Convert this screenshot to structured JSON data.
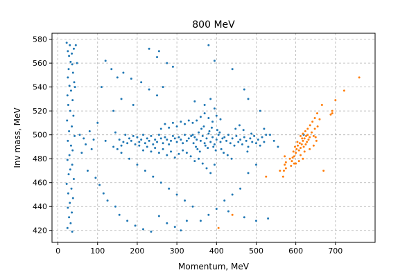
{
  "chart_data": {
    "type": "scatter",
    "title": "800 MeV",
    "xlabel": "Momentum, MeV",
    "ylabel": "Inv mass, MeV",
    "xlim": [
      -15,
      800
    ],
    "ylim": [
      410,
      585
    ],
    "xticks": [
      0,
      100,
      200,
      300,
      400,
      500,
      600,
      700
    ],
    "yticks": [
      420,
      440,
      460,
      480,
      500,
      520,
      540,
      560,
      580
    ],
    "grid": true,
    "series": [
      {
        "color": "#1f77b4",
        "points": [
          [
            22,
            577
          ],
          [
            30,
            575
          ],
          [
            35,
            568
          ],
          [
            25,
            570
          ],
          [
            28,
            566
          ],
          [
            40,
            572
          ],
          [
            32,
            561
          ],
          [
            36,
            559
          ],
          [
            27,
            555
          ],
          [
            38,
            552
          ],
          [
            25,
            548
          ],
          [
            41,
            544
          ],
          [
            29,
            541
          ],
          [
            33,
            537
          ],
          [
            24,
            533
          ],
          [
            37,
            529
          ],
          [
            26,
            525
          ],
          [
            31,
            520
          ],
          [
            39,
            516
          ],
          [
            23,
            512
          ],
          [
            35,
            507
          ],
          [
            28,
            503
          ],
          [
            42,
            499
          ],
          [
            25,
            495
          ],
          [
            33,
            491
          ],
          [
            37,
            487
          ],
          [
            29,
            483
          ],
          [
            24,
            479
          ],
          [
            36,
            475
          ],
          [
            31,
            471
          ],
          [
            27,
            467
          ],
          [
            40,
            463
          ],
          [
            22,
            459
          ],
          [
            34,
            455
          ],
          [
            26,
            451
          ],
          [
            38,
            447
          ],
          [
            30,
            443
          ],
          [
            25,
            439
          ],
          [
            35,
            435
          ],
          [
            28,
            431
          ],
          [
            32,
            426
          ],
          [
            24,
            422
          ],
          [
            36,
            419
          ],
          [
            45,
            575
          ],
          [
            48,
            560
          ],
          [
            43,
            540
          ],
          [
            120,
            562
          ],
          [
            135,
            555
          ],
          [
            150,
            548
          ],
          [
            110,
            540
          ],
          [
            165,
            552
          ],
          [
            185,
            547
          ],
          [
            210,
            544
          ],
          [
            230,
            538
          ],
          [
            250,
            533
          ],
          [
            265,
            540
          ],
          [
            190,
            525
          ],
          [
            160,
            530
          ],
          [
            140,
            520
          ],
          [
            100,
            510
          ],
          [
            80,
            503
          ],
          [
            90,
            496
          ],
          [
            70,
            492
          ],
          [
            60,
            485
          ],
          [
            75,
            470
          ],
          [
            95,
            464
          ],
          [
            105,
            458
          ],
          [
            115,
            451
          ],
          [
            125,
            445
          ],
          [
            145,
            440
          ],
          [
            155,
            433
          ],
          [
            175,
            428
          ],
          [
            195,
            424
          ],
          [
            215,
            421
          ],
          [
            235,
            419
          ],
          [
            255,
            432
          ],
          [
            275,
            426
          ],
          [
            295,
            423
          ],
          [
            310,
            420
          ],
          [
            325,
            428
          ],
          [
            250,
            565
          ],
          [
            275,
            560
          ],
          [
            290,
            557
          ],
          [
            230,
            572
          ],
          [
            255,
            570
          ],
          [
            380,
            575
          ],
          [
            395,
            562
          ],
          [
            440,
            555
          ],
          [
            470,
            538
          ],
          [
            480,
            530
          ],
          [
            510,
            520
          ],
          [
            520,
            505
          ],
          [
            535,
            500
          ],
          [
            545,
            495
          ],
          [
            555,
            490
          ],
          [
            500,
            475
          ],
          [
            480,
            468
          ],
          [
            460,
            455
          ],
          [
            440,
            450
          ],
          [
            420,
            445
          ],
          [
            400,
            438
          ],
          [
            380,
            433
          ],
          [
            360,
            428
          ],
          [
            340,
            440
          ],
          [
            320,
            445
          ],
          [
            300,
            450
          ],
          [
            280,
            455
          ],
          [
            260,
            460
          ],
          [
            240,
            465
          ],
          [
            220,
            470
          ],
          [
            200,
            475
          ],
          [
            180,
            480
          ],
          [
            160,
            485
          ],
          [
            140,
            490
          ],
          [
            120,
            495
          ],
          [
            55,
            500
          ],
          [
            65,
            497
          ],
          [
            85,
            488
          ],
          [
            530,
            430
          ],
          [
            500,
            428
          ],
          [
            470,
            431
          ],
          [
            430,
            436
          ],
          [
            620,
            500
          ],
          [
            340,
            500
          ],
          [
            345,
            498
          ],
          [
            350,
            496
          ],
          [
            355,
            502
          ],
          [
            360,
            495
          ],
          [
            365,
            499
          ],
          [
            370,
            493
          ],
          [
            375,
            497
          ],
          [
            380,
            501
          ],
          [
            385,
            494
          ],
          [
            390,
            498
          ],
          [
            395,
            492
          ],
          [
            400,
            496
          ],
          [
            405,
            500
          ],
          [
            410,
            494
          ],
          [
            348,
            490
          ],
          [
            352,
            488
          ],
          [
            358,
            486
          ],
          [
            362,
            505
          ],
          [
            368,
            507
          ],
          [
            372,
            491
          ],
          [
            378,
            489
          ],
          [
            382,
            503
          ],
          [
            388,
            506
          ],
          [
            392,
            490
          ],
          [
            398,
            487
          ],
          [
            402,
            504
          ],
          [
            408,
            502
          ],
          [
            412,
            488
          ],
          [
            415,
            497
          ],
          [
            342,
            493
          ],
          [
            336,
            499
          ],
          [
            330,
            497
          ],
          [
            325,
            495
          ],
          [
            320,
            500
          ],
          [
            315,
            493
          ],
          [
            310,
            496
          ],
          [
            305,
            498
          ],
          [
            300,
            494
          ],
          [
            295,
            497
          ],
          [
            290,
            499
          ],
          [
            285,
            495
          ],
          [
            280,
            492
          ],
          [
            275,
            496
          ],
          [
            270,
            498
          ],
          [
            265,
            493
          ],
          [
            260,
            497
          ],
          [
            255,
            500
          ],
          [
            250,
            494
          ],
          [
            245,
            496
          ],
          [
            240,
            492
          ],
          [
            235,
            499
          ],
          [
            230,
            495
          ],
          [
            225,
            497
          ],
          [
            220,
            493
          ],
          [
            215,
            500
          ],
          [
            210,
            496
          ],
          [
            205,
            494
          ],
          [
            200,
            498
          ],
          [
            195,
            492
          ],
          [
            190,
            499
          ],
          [
            185,
            495
          ],
          [
            180,
            497
          ],
          [
            175,
            493
          ],
          [
            170,
            500
          ],
          [
            165,
            494
          ],
          [
            160,
            491
          ],
          [
            155,
            496
          ],
          [
            150,
            488
          ],
          [
            145,
            502
          ],
          [
            420,
            498
          ],
          [
            425,
            495
          ],
          [
            430,
            500
          ],
          [
            435,
            493
          ],
          [
            440,
            497
          ],
          [
            445,
            491
          ],
          [
            450,
            499
          ],
          [
            455,
            494
          ],
          [
            460,
            496
          ],
          [
            465,
            492
          ],
          [
            470,
            498
          ],
          [
            475,
            495
          ],
          [
            480,
            490
          ],
          [
            485,
            497
          ],
          [
            490,
            494
          ],
          [
            495,
            499
          ],
          [
            500,
            493
          ],
          [
            505,
            496
          ],
          [
            510,
            491
          ],
          [
            515,
            498
          ],
          [
            520,
            494
          ],
          [
            525,
            500
          ],
          [
            418,
            485
          ],
          [
            428,
            483
          ],
          [
            438,
            480
          ],
          [
            448,
            505
          ],
          [
            458,
            508
          ],
          [
            468,
            504
          ],
          [
            478,
            486
          ],
          [
            488,
            501
          ],
          [
            355,
            480
          ],
          [
            365,
            476
          ],
          [
            375,
            472
          ],
          [
            385,
            468
          ],
          [
            395,
            475
          ],
          [
            345,
            478
          ],
          [
            335,
            482
          ],
          [
            325,
            485
          ],
          [
            315,
            487
          ],
          [
            305,
            484
          ],
          [
            295,
            481
          ],
          [
            285,
            486
          ],
          [
            275,
            483
          ],
          [
            265,
            488
          ],
          [
            255,
            485
          ],
          [
            245,
            489
          ],
          [
            235,
            486
          ],
          [
            225,
            490
          ],
          [
            215,
            487
          ],
          [
            205,
            491
          ],
          [
            350,
            512
          ],
          [
            360,
            515
          ],
          [
            370,
            518
          ],
          [
            380,
            514
          ],
          [
            390,
            511
          ],
          [
            400,
            516
          ],
          [
            410,
            513
          ],
          [
            340,
            510
          ],
          [
            330,
            512
          ],
          [
            320,
            509
          ],
          [
            310,
            511
          ],
          [
            300,
            507
          ],
          [
            290,
            510
          ],
          [
            280,
            506
          ],
          [
            270,
            509
          ],
          [
            260,
            505
          ],
          [
            370,
            525
          ],
          [
            385,
            530
          ],
          [
            345,
            528
          ],
          [
            395,
            522
          ]
        ]
      },
      {
        "color": "#ff7f0e",
        "points": [
          [
            760,
            548
          ],
          [
            722,
            537
          ],
          [
            700,
            529
          ],
          [
            692,
            520
          ],
          [
            688,
            517
          ],
          [
            660,
            513
          ],
          [
            655,
            507
          ],
          [
            648,
            505
          ],
          [
            650,
            498
          ],
          [
            645,
            499
          ],
          [
            640,
            502
          ],
          [
            635,
            498
          ],
          [
            632,
            496
          ],
          [
            630,
            500
          ],
          [
            628,
            494
          ],
          [
            625,
            492
          ],
          [
            622,
            497
          ],
          [
            620,
            490
          ],
          [
            618,
            495
          ],
          [
            615,
            492
          ],
          [
            612,
            489
          ],
          [
            610,
            493
          ],
          [
            608,
            487
          ],
          [
            605,
            491
          ],
          [
            602,
            488
          ],
          [
            600,
            485
          ],
          [
            598,
            490
          ],
          [
            596,
            482
          ],
          [
            594,
            486
          ],
          [
            592,
            481
          ],
          [
            590,
            478
          ],
          [
            612,
            499
          ],
          [
            618,
            501
          ],
          [
            624,
            503
          ],
          [
            630,
            505
          ],
          [
            636,
            508
          ],
          [
            642,
            511
          ],
          [
            648,
            514
          ],
          [
            654,
            518
          ],
          [
            618,
            480
          ],
          [
            608,
            478
          ],
          [
            596,
            476
          ],
          [
            585,
            480
          ],
          [
            575,
            477
          ],
          [
            572,
            475
          ],
          [
            570,
            470
          ],
          [
            568,
            465
          ],
          [
            575,
            472
          ],
          [
            588,
            474
          ],
          [
            600,
            476
          ],
          [
            612,
            483
          ],
          [
            622,
            486
          ],
          [
            635,
            488
          ],
          [
            645,
            491
          ],
          [
            652,
            495
          ],
          [
            560,
            470
          ],
          [
            572,
            482
          ],
          [
            666,
            525
          ],
          [
            670,
            470
          ],
          [
            692,
            518
          ],
          [
            525,
            465
          ],
          [
            440,
            433
          ],
          [
            405,
            422
          ],
          [
            616,
            497
          ],
          [
            604,
            494
          ],
          [
            626,
            499
          ]
        ]
      }
    ]
  }
}
